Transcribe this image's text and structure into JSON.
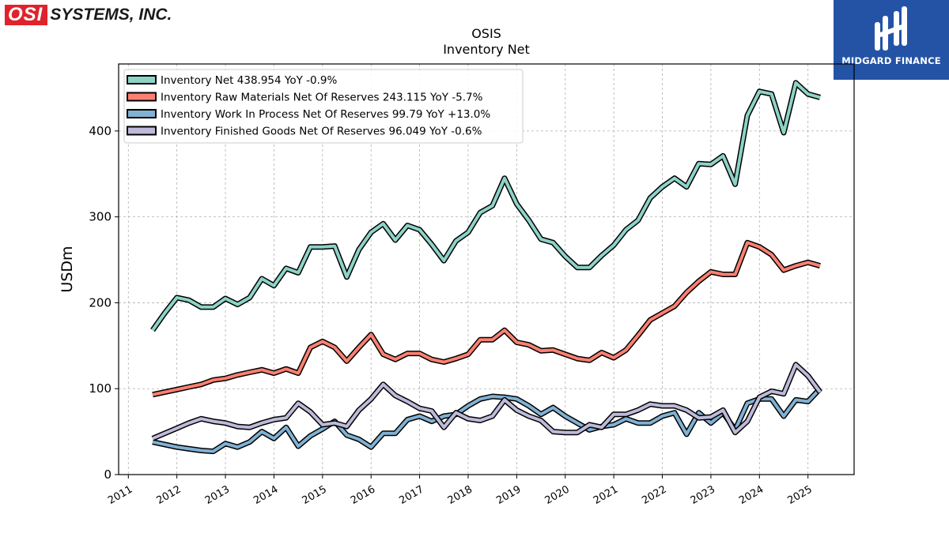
{
  "logos": {
    "osi_mark": "OSI",
    "osi_text": "SYSTEMS, INC.",
    "midgard_text": "MIDGARD FINANCE"
  },
  "chart_data": {
    "type": "line",
    "title": "OSIS",
    "subtitle": "Inventory Net",
    "ylabel": "USDm",
    "xlabel": "",
    "xlim": [
      2010.8,
      2025.95
    ],
    "ylim": [
      0,
      478
    ],
    "x_ticks": [
      "2011",
      "2012",
      "2013",
      "2014",
      "2015",
      "2016",
      "2017",
      "2018",
      "2019",
      "2020",
      "2021",
      "2022",
      "2023",
      "2024",
      "2025"
    ],
    "y_ticks": [
      0,
      100,
      200,
      300,
      400
    ],
    "grid": true,
    "legend_position": "top-left",
    "series": [
      {
        "name": "Inventory Net  438.954 YoY -0.9%",
        "color": "#8dd3c7",
        "x": [
          2011.5,
          2011.75,
          2012.0,
          2012.25,
          2012.5,
          2012.75,
          2013.0,
          2013.25,
          2013.5,
          2013.75,
          2014.0,
          2014.25,
          2014.5,
          2014.75,
          2015.0,
          2015.25,
          2015.5,
          2015.75,
          2016.0,
          2016.25,
          2016.5,
          2016.75,
          2017.0,
          2017.25,
          2017.5,
          2017.75,
          2018.0,
          2018.25,
          2018.5,
          2018.75,
          2019.0,
          2019.25,
          2019.5,
          2019.75,
          2020.0,
          2020.25,
          2020.5,
          2020.75,
          2021.0,
          2021.25,
          2021.5,
          2021.75,
          2022.0,
          2022.25,
          2022.5,
          2022.75,
          2023.0,
          2023.25,
          2023.5,
          2023.75,
          2024.0,
          2024.25,
          2024.5,
          2024.75,
          2025.0,
          2025.25
        ],
        "values": [
          168,
          188,
          206,
          203,
          195,
          195,
          205,
          198,
          206,
          228,
          220,
          240,
          235,
          265,
          265,
          266,
          230,
          262,
          282,
          292,
          273,
          290,
          285,
          268,
          249,
          272,
          282,
          305,
          313,
          345,
          315,
          296,
          274,
          270,
          254,
          241,
          241,
          255,
          267,
          285,
          296,
          322,
          335,
          345,
          335,
          362,
          361,
          371,
          338,
          418,
          446,
          443,
          398,
          456,
          443,
          439
        ]
      },
      {
        "name": "Inventory Raw Materials Net Of Reserves  243.115 YoY -5.7%",
        "color": "#fb8072",
        "x": [
          2011.5,
          2011.75,
          2012.0,
          2012.25,
          2012.5,
          2012.75,
          2013.0,
          2013.25,
          2013.5,
          2013.75,
          2014.0,
          2014.25,
          2014.5,
          2014.75,
          2015.0,
          2015.25,
          2015.5,
          2015.75,
          2016.0,
          2016.25,
          2016.5,
          2016.75,
          2017.0,
          2017.25,
          2017.5,
          2017.75,
          2018.0,
          2018.25,
          2018.5,
          2018.75,
          2019.0,
          2019.25,
          2019.5,
          2019.75,
          2020.0,
          2020.25,
          2020.5,
          2020.75,
          2021.0,
          2021.25,
          2021.5,
          2021.75,
          2022.0,
          2022.25,
          2022.5,
          2022.75,
          2023.0,
          2023.25,
          2023.5,
          2023.75,
          2024.0,
          2024.25,
          2024.5,
          2024.75,
          2025.0,
          2025.25
        ],
        "values": [
          93,
          96,
          99,
          102,
          105,
          110,
          112,
          116,
          119,
          122,
          118,
          123,
          118,
          148,
          155,
          148,
          132,
          148,
          163,
          140,
          134,
          141,
          141,
          134,
          131,
          135,
          140,
          157,
          157,
          168,
          154,
          151,
          144,
          145,
          140,
          135,
          133,
          142,
          136,
          145,
          162,
          180,
          188,
          196,
          212,
          225,
          236,
          233,
          233,
          270,
          265,
          256,
          238,
          243,
          247,
          243
        ]
      },
      {
        "name": "Inventory Work In Process Net Of Reserves  99.79 YoY +13.0%",
        "color": "#80b1d3",
        "x": [
          2011.5,
          2011.75,
          2012.0,
          2012.25,
          2012.5,
          2012.75,
          2013.0,
          2013.25,
          2013.5,
          2013.75,
          2014.0,
          2014.25,
          2014.5,
          2014.75,
          2015.0,
          2015.25,
          2015.5,
          2015.75,
          2016.0,
          2016.25,
          2016.5,
          2016.75,
          2017.0,
          2017.25,
          2017.5,
          2017.75,
          2018.0,
          2018.25,
          2018.5,
          2018.75,
          2019.0,
          2019.25,
          2019.5,
          2019.75,
          2020.0,
          2020.25,
          2020.5,
          2020.75,
          2021.0,
          2021.25,
          2021.5,
          2021.75,
          2022.0,
          2022.25,
          2022.5,
          2022.75,
          2023.0,
          2023.25,
          2023.5,
          2023.75,
          2024.0,
          2024.25,
          2024.5,
          2024.75,
          2025.0,
          2025.25
        ],
        "values": [
          38,
          35,
          32,
          30,
          28,
          27,
          36,
          32,
          38,
          50,
          42,
          55,
          33,
          45,
          53,
          62,
          46,
          41,
          32,
          48,
          48,
          64,
          68,
          62,
          68,
          70,
          80,
          88,
          91,
          90,
          88,
          80,
          70,
          78,
          68,
          60,
          52,
          56,
          58,
          65,
          60,
          60,
          68,
          72,
          47,
          72,
          60,
          72,
          52,
          83,
          88,
          88,
          68,
          87,
          85,
          100
        ]
      },
      {
        "name": "Inventory Finished Goods Net Of Reserves  96.049 YoY -0.6%",
        "color": "#bebada",
        "x": [
          2011.5,
          2011.75,
          2012.0,
          2012.25,
          2012.5,
          2012.75,
          2013.0,
          2013.25,
          2013.5,
          2013.75,
          2014.0,
          2014.25,
          2014.5,
          2014.75,
          2015.0,
          2015.25,
          2015.5,
          2015.75,
          2016.0,
          2016.25,
          2016.5,
          2016.75,
          2017.0,
          2017.25,
          2017.5,
          2017.75,
          2018.0,
          2018.25,
          2018.5,
          2018.75,
          2019.0,
          2019.25,
          2019.5,
          2019.75,
          2020.0,
          2020.25,
          2020.5,
          2020.75,
          2021.0,
          2021.25,
          2021.5,
          2021.75,
          2022.0,
          2022.25,
          2022.5,
          2022.75,
          2023.0,
          2023.25,
          2023.5,
          2023.75,
          2024.0,
          2024.25,
          2024.5,
          2024.75,
          2025.0,
          2025.25
        ],
        "values": [
          42,
          48,
          54,
          60,
          65,
          62,
          60,
          56,
          55,
          60,
          64,
          66,
          83,
          73,
          58,
          60,
          56,
          75,
          88,
          105,
          92,
          85,
          77,
          74,
          55,
          72,
          65,
          63,
          68,
          87,
          75,
          68,
          63,
          50,
          49,
          49,
          58,
          55,
          70,
          70,
          75,
          82,
          80,
          80,
          75,
          66,
          67,
          75,
          49,
          62,
          90,
          97,
          94,
          128,
          115,
          96
        ]
      }
    ]
  }
}
